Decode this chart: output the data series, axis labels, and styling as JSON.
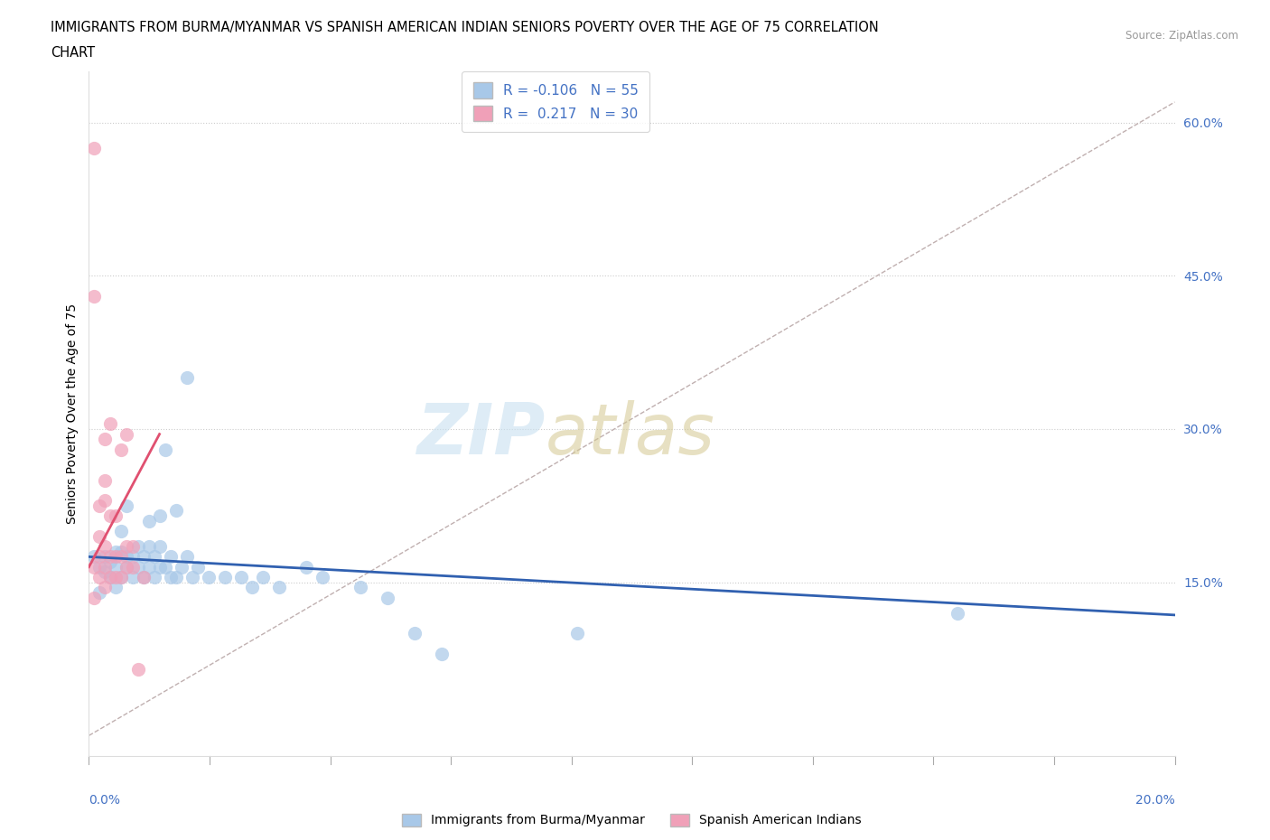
{
  "title_line1": "IMMIGRANTS FROM BURMA/MYANMAR VS SPANISH AMERICAN INDIAN SENIORS POVERTY OVER THE AGE OF 75 CORRELATION",
  "title_line2": "CHART",
  "source": "Source: ZipAtlas.com",
  "ylabel": "Seniors Poverty Over the Age of 75",
  "yticks": [
    0.0,
    0.15,
    0.3,
    0.45,
    0.6
  ],
  "ytick_labels": [
    "",
    "15.0%",
    "30.0%",
    "45.0%",
    "60.0%"
  ],
  "xlim": [
    0.0,
    0.2
  ],
  "ylim": [
    -0.02,
    0.65
  ],
  "blue_color": "#a8c8e8",
  "pink_color": "#f0a0b8",
  "blue_line_color": "#3060b0",
  "pink_line_color": "#e05070",
  "gray_dash_color": "#c0b0b0",
  "blue_trend": [
    0.0,
    0.175,
    0.2,
    0.118
  ],
  "pink_trend_x": [
    0.0,
    0.013
  ],
  "pink_trend_y": [
    0.165,
    0.295
  ],
  "gray_dash": [
    0.0,
    0.0,
    0.2,
    0.62
  ],
  "scatter_blue": [
    [
      0.001,
      0.175
    ],
    [
      0.002,
      0.14
    ],
    [
      0.002,
      0.165
    ],
    [
      0.003,
      0.16
    ],
    [
      0.003,
      0.175
    ],
    [
      0.004,
      0.155
    ],
    [
      0.004,
      0.17
    ],
    [
      0.005,
      0.145
    ],
    [
      0.005,
      0.165
    ],
    [
      0.005,
      0.18
    ],
    [
      0.006,
      0.155
    ],
    [
      0.006,
      0.18
    ],
    [
      0.006,
      0.2
    ],
    [
      0.007,
      0.165
    ],
    [
      0.007,
      0.175
    ],
    [
      0.007,
      0.225
    ],
    [
      0.008,
      0.155
    ],
    [
      0.008,
      0.175
    ],
    [
      0.009,
      0.165
    ],
    [
      0.009,
      0.185
    ],
    [
      0.01,
      0.155
    ],
    [
      0.01,
      0.175
    ],
    [
      0.011,
      0.165
    ],
    [
      0.011,
      0.185
    ],
    [
      0.011,
      0.21
    ],
    [
      0.012,
      0.155
    ],
    [
      0.012,
      0.175
    ],
    [
      0.013,
      0.165
    ],
    [
      0.013,
      0.185
    ],
    [
      0.013,
      0.215
    ],
    [
      0.014,
      0.165
    ],
    [
      0.014,
      0.28
    ],
    [
      0.015,
      0.155
    ],
    [
      0.015,
      0.175
    ],
    [
      0.016,
      0.155
    ],
    [
      0.016,
      0.22
    ],
    [
      0.017,
      0.165
    ],
    [
      0.018,
      0.175
    ],
    [
      0.018,
      0.35
    ],
    [
      0.019,
      0.155
    ],
    [
      0.02,
      0.165
    ],
    [
      0.022,
      0.155
    ],
    [
      0.025,
      0.155
    ],
    [
      0.028,
      0.155
    ],
    [
      0.03,
      0.145
    ],
    [
      0.032,
      0.155
    ],
    [
      0.035,
      0.145
    ],
    [
      0.04,
      0.165
    ],
    [
      0.043,
      0.155
    ],
    [
      0.05,
      0.145
    ],
    [
      0.055,
      0.135
    ],
    [
      0.06,
      0.1
    ],
    [
      0.065,
      0.08
    ],
    [
      0.09,
      0.1
    ],
    [
      0.16,
      0.12
    ]
  ],
  "scatter_pink": [
    [
      0.001,
      0.575
    ],
    [
      0.001,
      0.43
    ],
    [
      0.001,
      0.165
    ],
    [
      0.001,
      0.135
    ],
    [
      0.002,
      0.155
    ],
    [
      0.002,
      0.175
    ],
    [
      0.002,
      0.195
    ],
    [
      0.002,
      0.225
    ],
    [
      0.003,
      0.145
    ],
    [
      0.003,
      0.165
    ],
    [
      0.003,
      0.185
    ],
    [
      0.003,
      0.23
    ],
    [
      0.003,
      0.25
    ],
    [
      0.003,
      0.29
    ],
    [
      0.004,
      0.155
    ],
    [
      0.004,
      0.175
    ],
    [
      0.004,
      0.215
    ],
    [
      0.004,
      0.305
    ],
    [
      0.005,
      0.155
    ],
    [
      0.005,
      0.175
    ],
    [
      0.005,
      0.215
    ],
    [
      0.006,
      0.155
    ],
    [
      0.006,
      0.175
    ],
    [
      0.006,
      0.28
    ],
    [
      0.007,
      0.165
    ],
    [
      0.007,
      0.185
    ],
    [
      0.007,
      0.295
    ],
    [
      0.008,
      0.165
    ],
    [
      0.008,
      0.185
    ],
    [
      0.009,
      0.065
    ],
    [
      0.01,
      0.155
    ]
  ]
}
